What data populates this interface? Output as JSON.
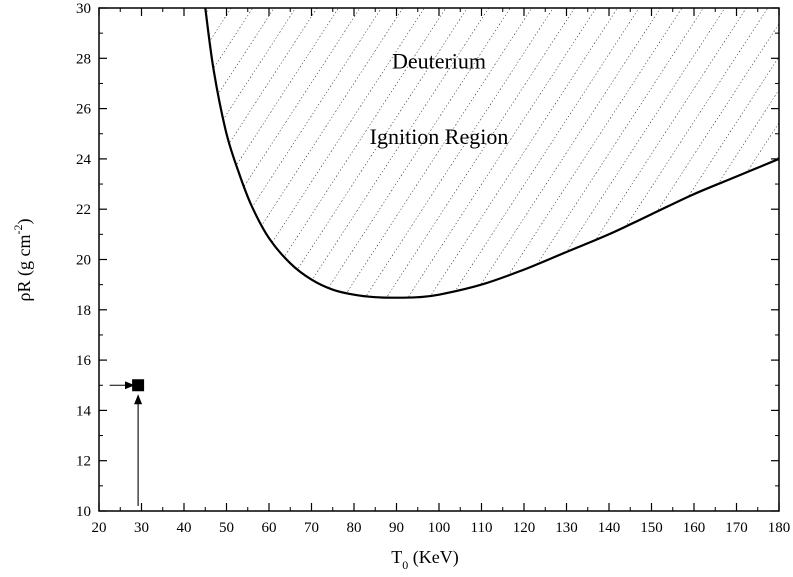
{
  "chart_data": {
    "type": "line",
    "xlabel": {
      "main": "T",
      "sub": "0",
      "rest": " (KeV)"
    },
    "ylabel": {
      "main": "ρR (g cm",
      "sup": "-2",
      "close": ")"
    },
    "xlim": [
      20,
      180
    ],
    "ylim": [
      10,
      30
    ],
    "x_ticks": [
      20,
      30,
      40,
      50,
      60,
      70,
      80,
      90,
      100,
      110,
      120,
      130,
      140,
      150,
      160,
      170,
      180
    ],
    "y_ticks": [
      10,
      12,
      14,
      16,
      18,
      20,
      22,
      24,
      26,
      28,
      30
    ],
    "grid": false,
    "series": [
      {
        "role": "ignition-boundary",
        "color": "#000000",
        "x": [
          45,
          47,
          50,
          53,
          56,
          60,
          65,
          70,
          75,
          80,
          85,
          90,
          95,
          100,
          110,
          120,
          130,
          140,
          150,
          160,
          170,
          180
        ],
        "y": [
          30,
          27.5,
          25.0,
          23.4,
          22.1,
          20.85,
          19.85,
          19.2,
          18.8,
          18.6,
          18.5,
          18.48,
          18.5,
          18.6,
          19.0,
          19.6,
          20.3,
          21.0,
          21.8,
          22.6,
          23.3,
          24.0
        ]
      }
    ],
    "shaded_region": {
      "pattern": "diagonal-dotted-hatch",
      "bounded_by": "ignition-boundary",
      "upper": 30
    },
    "annotations": [
      {
        "text": "Deuterium",
        "x": 100,
        "y": 27.6
      },
      {
        "text": "Ignition Region",
        "x": 100,
        "y": 24.6
      }
    ],
    "marker": {
      "shape": "filled-square",
      "x": 29.2,
      "y": 15
    },
    "marker_arrows": [
      {
        "from": [
          22.5,
          15
        ],
        "to": [
          28.2,
          15
        ]
      },
      {
        "from": [
          29.2,
          10.2
        ],
        "to": [
          29.2,
          14.6
        ]
      }
    ]
  }
}
